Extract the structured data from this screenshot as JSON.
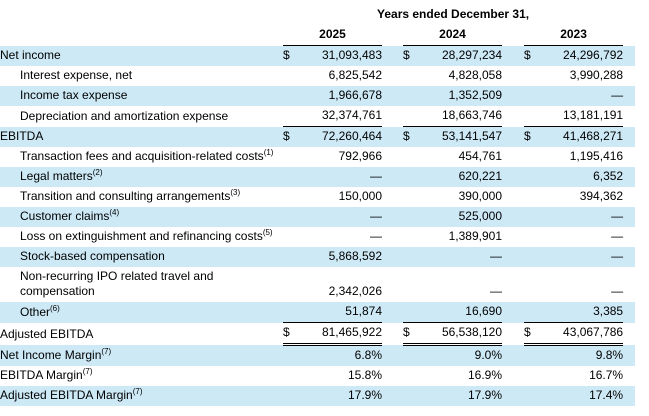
{
  "table": {
    "header": {
      "title": "Years ended December 31,",
      "years": [
        "2025",
        "2024",
        "2023"
      ]
    },
    "currency_symbol": "$",
    "colors": {
      "row_shade": "#cde9f6",
      "text": "#000000",
      "rule": "#000000",
      "background": "#ffffff"
    },
    "rows": [
      {
        "label": "Net income",
        "sup": "",
        "indent": false,
        "shaded": true,
        "dollar": true,
        "wrap": false,
        "rule": "none",
        "values": [
          "31,093,483",
          "28,297,234",
          "24,296,792"
        ]
      },
      {
        "label": "Interest expense, net",
        "sup": "",
        "indent": true,
        "shaded": false,
        "dollar": false,
        "wrap": false,
        "rule": "none",
        "values": [
          "6,825,542",
          "4,828,058",
          "3,990,288"
        ]
      },
      {
        "label": "Income tax expense",
        "sup": "",
        "indent": true,
        "shaded": true,
        "dollar": false,
        "wrap": false,
        "rule": "none",
        "values": [
          "1,966,678",
          "1,352,509",
          "—"
        ]
      },
      {
        "label": "Depreciation and amortization expense",
        "sup": "",
        "indent": true,
        "shaded": false,
        "dollar": false,
        "wrap": false,
        "rule": "single",
        "values": [
          "32,374,761",
          "18,663,746",
          "13,181,191"
        ]
      },
      {
        "label": "EBITDA",
        "sup": "",
        "indent": false,
        "shaded": true,
        "dollar": true,
        "wrap": false,
        "rule": "none",
        "values": [
          "72,260,464",
          "53,141,547",
          "41,468,271"
        ]
      },
      {
        "label": "Transaction fees and acquisition-related costs",
        "sup": "(1)",
        "indent": true,
        "shaded": false,
        "dollar": false,
        "wrap": false,
        "rule": "none",
        "values": [
          "792,966",
          "454,761",
          "1,195,416"
        ]
      },
      {
        "label": "Legal matters",
        "sup": "(2)",
        "indent": true,
        "shaded": true,
        "dollar": false,
        "wrap": false,
        "rule": "none",
        "values": [
          "—",
          "620,221",
          "6,352"
        ]
      },
      {
        "label": "Transition and consulting arrangements",
        "sup": "(3)",
        "indent": true,
        "shaded": false,
        "dollar": false,
        "wrap": false,
        "rule": "none",
        "values": [
          "150,000",
          "390,000",
          "394,362"
        ]
      },
      {
        "label": "Customer claims",
        "sup": "(4)",
        "indent": true,
        "shaded": true,
        "dollar": false,
        "wrap": false,
        "rule": "none",
        "values": [
          "—",
          "525,000",
          "—"
        ]
      },
      {
        "label": "Loss on extinguishment and refinancing costs",
        "sup": "(5)",
        "indent": true,
        "shaded": false,
        "dollar": false,
        "wrap": false,
        "rule": "none",
        "values": [
          "—",
          "1,389,901",
          "—"
        ]
      },
      {
        "label": "Stock-based compensation",
        "sup": "",
        "indent": true,
        "shaded": true,
        "dollar": false,
        "wrap": false,
        "rule": "none",
        "values": [
          "5,868,592",
          "—",
          "—"
        ]
      },
      {
        "label": "Non-recurring IPO related travel and compensation",
        "sup": "",
        "indent": true,
        "shaded": false,
        "dollar": false,
        "wrap": true,
        "rule": "none",
        "values": [
          "2,342,026",
          "—",
          "—"
        ]
      },
      {
        "label": "Other",
        "sup": "(6)",
        "indent": true,
        "shaded": true,
        "dollar": false,
        "wrap": false,
        "rule": "single",
        "values": [
          "51,874",
          "16,690",
          "3,385"
        ]
      },
      {
        "label": "Adjusted EBITDA",
        "sup": "",
        "indent": false,
        "shaded": false,
        "dollar": true,
        "wrap": false,
        "rule": "double",
        "values": [
          "81,465,922",
          "56,538,120",
          "43,067,786"
        ]
      },
      {
        "label": "Net Income Margin",
        "sup": "(7)",
        "indent": false,
        "shaded": true,
        "dollar": false,
        "wrap": false,
        "rule": "none",
        "values": [
          "6.8%",
          "9.0%",
          "9.8%"
        ]
      },
      {
        "label": "EBITDA Margin",
        "sup": "(7)",
        "indent": false,
        "shaded": false,
        "dollar": false,
        "wrap": false,
        "rule": "none",
        "values": [
          "15.8%",
          "16.9%",
          "16.7%"
        ]
      },
      {
        "label": "Adjusted EBITDA Margin",
        "sup": "(7)",
        "indent": false,
        "shaded": true,
        "dollar": false,
        "wrap": false,
        "rule": "none",
        "values": [
          "17.9%",
          "17.9%",
          "17.4%"
        ]
      }
    ]
  }
}
